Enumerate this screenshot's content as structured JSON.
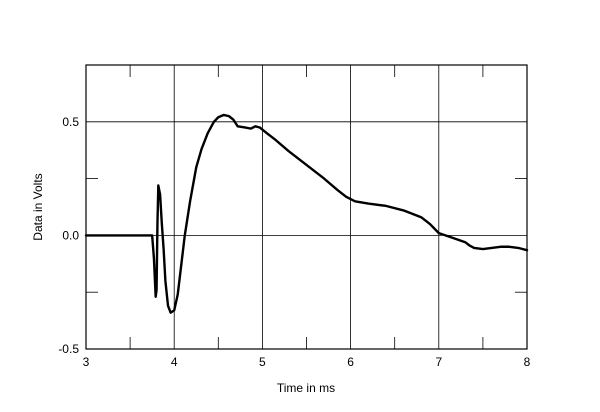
{
  "chart_data": {
    "type": "line",
    "title": "",
    "xlabel": "Time in ms",
    "ylabel": "Data in Volts",
    "xlim": [
      3,
      8
    ],
    "ylim": [
      -0.5,
      0.75
    ],
    "grid": true,
    "legend": "none",
    "x_ticks": [
      {
        "value": 3,
        "label": "3"
      },
      {
        "value": 4,
        "label": "4"
      },
      {
        "value": 5,
        "label": "5"
      },
      {
        "value": 6,
        "label": "6"
      },
      {
        "value": 7,
        "label": "7"
      },
      {
        "value": 8,
        "label": "8"
      }
    ],
    "y_ticks": [
      {
        "value": -0.5,
        "label": "-0.5"
      },
      {
        "value": 0.0,
        "label": "0.0"
      },
      {
        "value": 0.5,
        "label": "0.5"
      }
    ],
    "x_grid": [
      4,
      5,
      6,
      7
    ],
    "y_grid": [
      0.0,
      0.5
    ],
    "x_minor_ticks": [
      3.5,
      4.5,
      5.5,
      6.5,
      7.5
    ],
    "y_minor_ticks": [
      -0.25,
      0.25
    ],
    "series": [
      {
        "color": "#000000",
        "x": [
          3.0,
          3.5,
          3.7,
          3.75,
          3.77,
          3.79,
          3.8,
          3.81,
          3.82,
          3.84,
          3.86,
          3.88,
          3.9,
          3.93,
          3.96,
          4.0,
          4.04,
          4.08,
          4.12,
          4.18,
          4.25,
          4.31,
          4.38,
          4.45,
          4.5,
          4.56,
          4.62,
          4.67,
          4.72,
          4.8,
          4.87,
          4.92,
          4.97,
          5.05,
          5.15,
          5.3,
          5.5,
          5.7,
          5.85,
          5.95,
          6.05,
          6.2,
          6.4,
          6.6,
          6.8,
          6.9,
          7.0,
          7.15,
          7.3,
          7.35,
          7.4,
          7.5,
          7.6,
          7.7,
          7.8,
          7.9,
          8.0
        ],
        "values": [
          0.0,
          0.0,
          0.0,
          0.0,
          -0.1,
          -0.27,
          -0.24,
          0.05,
          0.22,
          0.18,
          0.05,
          -0.06,
          -0.2,
          -0.31,
          -0.34,
          -0.33,
          -0.26,
          -0.13,
          0.0,
          0.15,
          0.3,
          0.38,
          0.45,
          0.5,
          0.52,
          0.53,
          0.525,
          0.51,
          0.48,
          0.475,
          0.47,
          0.48,
          0.475,
          0.45,
          0.42,
          0.37,
          0.31,
          0.25,
          0.2,
          0.17,
          0.15,
          0.14,
          0.13,
          0.11,
          0.08,
          0.05,
          0.01,
          -0.01,
          -0.03,
          -0.045,
          -0.055,
          -0.06,
          -0.055,
          -0.05,
          -0.05,
          -0.055,
          -0.065
        ]
      }
    ]
  }
}
